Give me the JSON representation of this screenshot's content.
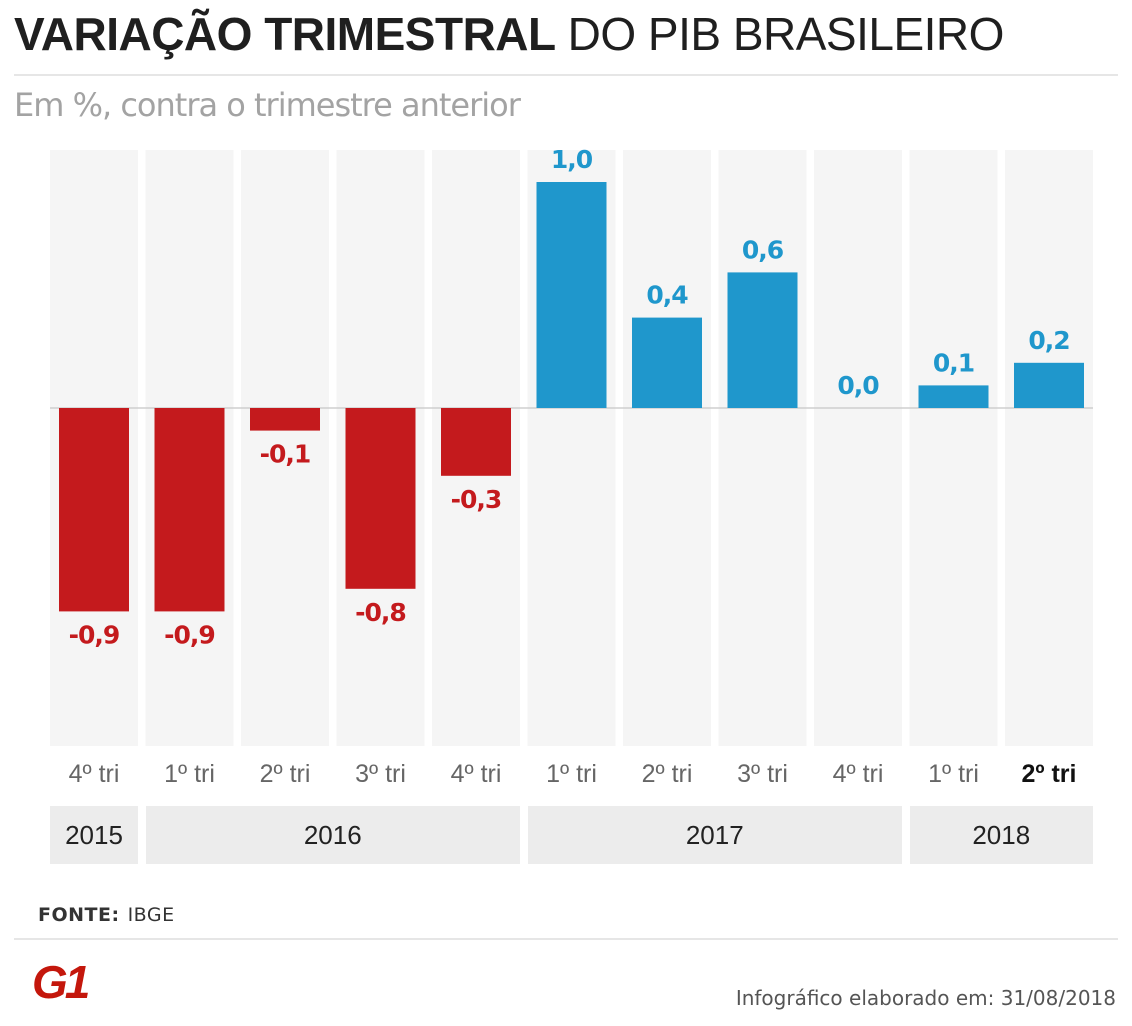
{
  "header": {
    "title_bold": "VARIAÇÃO TRIMESTRAL",
    "title_light": "DO PIB BRASILEIRO",
    "subtitle": "Em %, contra o trimestre anterior"
  },
  "chart_data": {
    "type": "bar",
    "categories": [
      "4º tri",
      "1º tri",
      "2º tri",
      "3º tri",
      "4º tri",
      "1º tri",
      "2º tri",
      "3º tri",
      "4º tri",
      "1º tri",
      "2º tri"
    ],
    "values": [
      -0.9,
      -0.9,
      -0.1,
      -0.8,
      -0.3,
      1.0,
      0.4,
      0.6,
      0.0,
      0.1,
      0.2
    ],
    "value_labels": [
      "-0,9",
      "-0,9",
      "-0,1",
      "-0,8",
      "-0,3",
      "1,0",
      "0,4",
      "0,6",
      "0,0",
      "0,1",
      "0,2"
    ],
    "highlight_index": 10,
    "years": [
      {
        "label": "2015",
        "count": 1
      },
      {
        "label": "2016",
        "count": 4
      },
      {
        "label": "2017",
        "count": 4
      },
      {
        "label": "2018",
        "count": 2
      }
    ],
    "ylim": [
      -1.45,
      1.1
    ],
    "grid": false,
    "colors": {
      "positive": "#1f97cc",
      "negative": "#c41a1d",
      "column_bg": "#f5f5f5",
      "zero_line": "#cfcfcf"
    }
  },
  "footer": {
    "source_label": "FONTE:",
    "source_value": "IBGE",
    "logo_text": "G1",
    "credit": "Infográfico elaborado em: 31/08/2018"
  },
  "brand": {
    "logo_color": "#c4170c"
  }
}
